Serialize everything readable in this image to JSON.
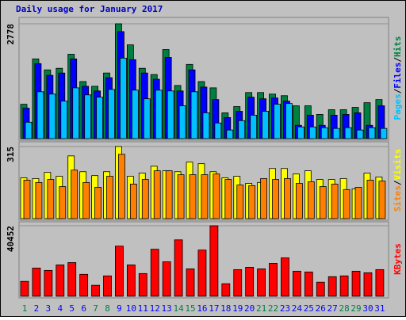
{
  "chart_data": [
    {
      "type": "bar",
      "title": "Daily usage for January 2017",
      "ylim": [
        0,
        2778
      ],
      "yticks": [
        2778
      ],
      "legend_separator": "/",
      "series": [
        {
          "name": "Hits",
          "color": "#008040",
          "values": [
            831,
            1928,
            1663,
            1701,
            2041,
            1380,
            1266,
            1587,
            2778,
            2268,
            1701,
            1550,
            2154,
            1285,
            1795,
            1380,
            1228,
            624,
            775,
            1115,
            1115,
            1077,
            1039,
            794,
            794,
            586,
            699,
            699,
            756,
            869,
            945
          ]
        },
        {
          "name": "Files",
          "color": "#0000ff",
          "values": [
            737,
            1814,
            1531,
            1587,
            1928,
            1266,
            1153,
            1474,
            2589,
            1909,
            1587,
            1436,
            1965,
            1153,
            1663,
            1247,
            945,
            510,
            661,
            1002,
            964,
            983,
            907,
            321,
            567,
            321,
            567,
            586,
            624,
            321,
            794
          ]
        },
        {
          "name": "Pages",
          "color": "#00c0ff",
          "values": [
            397,
            1134,
            1077,
            907,
            1228,
            1058,
            1002,
            1190,
            1947,
            1172,
            964,
            1172,
            1153,
            794,
            1134,
            624,
            378,
            208,
            435,
            567,
            661,
            832,
            850,
            283,
            283,
            265,
            246,
            265,
            208,
            265,
            246
          ]
        }
      ]
    },
    {
      "type": "bar",
      "ylim": [
        0,
        315
      ],
      "yticks": [
        315
      ],
      "legend_separator": "/",
      "series": [
        {
          "name": "Visits",
          "color": "#ffff00",
          "values": [
            178,
            175,
            202,
            185,
            274,
            205,
            188,
            205,
            315,
            185,
            199,
            229,
            209,
            205,
            247,
            240,
            205,
            178,
            185,
            154,
            158,
            219,
            219,
            195,
            209,
            171,
            171,
            175,
            130,
            199,
            182
          ]
        },
        {
          "name": "Sites",
          "color": "#ff8000",
          "values": [
            168,
            158,
            171,
            140,
            212,
            158,
            137,
            185,
            281,
            151,
            171,
            209,
            209,
            192,
            192,
            192,
            195,
            171,
            147,
            144,
            175,
            171,
            175,
            154,
            161,
            140,
            151,
            127,
            137,
            168,
            164
          ]
        }
      ]
    },
    {
      "type": "bar",
      "ylim": [
        0,
        40452
      ],
      "yticks": [
        40452
      ],
      "categories": [
        "1",
        "2",
        "3",
        "4",
        "5",
        "6",
        "7",
        "8",
        "9",
        "10",
        "11",
        "12",
        "13",
        "14",
        "15",
        "16",
        "17",
        "18",
        "19",
        "20",
        "21",
        "22",
        "23",
        "24",
        "25",
        "26",
        "27",
        "28",
        "29",
        "30",
        "31"
      ],
      "category_colors": [
        "#008040",
        "#0000ff",
        "#0000ff",
        "#0000ff",
        "#0000ff",
        "#0000ff",
        "#008040",
        "#008040",
        "#0000ff",
        "#0000ff",
        "#0000ff",
        "#0000ff",
        "#0000ff",
        "#008040",
        "#008040",
        "#0000ff",
        "#0000ff",
        "#0000ff",
        "#0000ff",
        "#0000ff",
        "#008040",
        "#008040",
        "#0000ff",
        "#0000ff",
        "#0000ff",
        "#0000ff",
        "#0000ff",
        "#008040",
        "#008040",
        "#0000ff",
        "#0000ff"
      ],
      "series": [
        {
          "name": "KBytes",
          "color": "#ff0000",
          "values": [
            8540,
            16181,
            14832,
            17979,
            19327,
            12585,
            6293,
            11686,
            28766,
            17979,
            13035,
            26968,
            19777,
            32362,
            15731,
            26519,
            40452,
            7191,
            15282,
            16630,
            15731,
            18878,
            22024,
            14383,
            13933,
            8090,
            11237,
            11686,
            14383,
            13484,
            15282
          ]
        }
      ]
    }
  ]
}
